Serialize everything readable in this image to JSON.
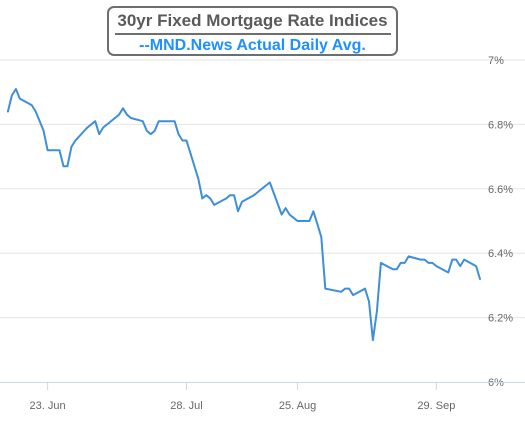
{
  "colors": {
    "line": "#3d8fd9",
    "grid": "#e6e6e6",
    "title_border": "#6e6e6e",
    "title_text": "#5a5a5a",
    "subtitle_text": "#1e90ff"
  },
  "chart_data": {
    "type": "line",
    "title": "30yr Fixed Mortgage Rate Indices",
    "subtitle": "--MND.News Actual Daily Avg.",
    "xlabel": "",
    "ylabel": "",
    "ylim": [
      6.0,
      7.0
    ],
    "y_tick_labels": [
      "7%",
      "6.8%",
      "6.6%",
      "6.4%",
      "6.2%",
      "6%"
    ],
    "y_tick_values": [
      7.0,
      6.8,
      6.6,
      6.4,
      6.2,
      6.0
    ],
    "x_tick_labels": [
      "23. Jun",
      "28. Jul",
      "25. Aug",
      "29. Sep"
    ],
    "x_tick_dates": [
      "2023-06-23",
      "2023-07-28",
      "2023-08-25",
      "2023-09-29"
    ],
    "grid": "horizontal",
    "legend": "none",
    "series": [
      {
        "x": [
          "2023-06-13",
          "2023-06-14",
          "2023-06-15",
          "2023-06-16",
          "2023-06-19",
          "2023-06-20",
          "2023-06-21",
          "2023-06-22",
          "2023-06-23",
          "2023-06-26",
          "2023-06-27",
          "2023-06-28",
          "2023-06-29",
          "2023-06-30",
          "2023-07-03",
          "2023-07-05",
          "2023-07-06",
          "2023-07-07",
          "2023-07-10",
          "2023-07-11",
          "2023-07-12",
          "2023-07-13",
          "2023-07-14",
          "2023-07-17",
          "2023-07-18",
          "2023-07-19",
          "2023-07-20",
          "2023-07-21",
          "2023-07-24",
          "2023-07-25",
          "2023-07-26",
          "2023-07-27",
          "2023-07-28",
          "2023-07-31",
          "2023-08-01",
          "2023-08-02",
          "2023-08-03",
          "2023-08-04",
          "2023-08-07",
          "2023-08-08",
          "2023-08-09",
          "2023-08-10",
          "2023-08-11",
          "2023-08-14",
          "2023-08-15",
          "2023-08-16",
          "2023-08-17",
          "2023-08-18",
          "2023-08-21",
          "2023-08-22",
          "2023-08-23",
          "2023-08-24",
          "2023-08-25",
          "2023-08-28",
          "2023-08-29",
          "2023-08-30",
          "2023-08-31",
          "2023-09-01",
          "2023-09-05",
          "2023-09-06",
          "2023-09-07",
          "2023-09-08",
          "2023-09-11",
          "2023-09-12",
          "2023-09-13",
          "2023-09-14",
          "2023-09-15",
          "2023-09-18",
          "2023-09-19",
          "2023-09-20",
          "2023-09-21",
          "2023-09-22",
          "2023-09-25",
          "2023-09-26",
          "2023-09-27",
          "2023-09-28",
          "2023-09-29",
          "2023-10-02",
          "2023-10-03",
          "2023-10-04",
          "2023-10-05",
          "2023-10-06",
          "2023-10-09",
          "2023-10-10"
        ],
        "y": [
          6.84,
          6.89,
          6.91,
          6.88,
          6.86,
          6.84,
          6.81,
          6.78,
          6.72,
          6.72,
          6.67,
          6.67,
          6.73,
          6.75,
          6.79,
          6.81,
          6.77,
          6.79,
          6.82,
          6.83,
          6.85,
          6.83,
          6.82,
          6.81,
          6.78,
          6.77,
          6.78,
          6.81,
          6.81,
          6.81,
          6.77,
          6.75,
          6.75,
          6.63,
          6.57,
          6.58,
          6.57,
          6.55,
          6.57,
          6.58,
          6.58,
          6.53,
          6.56,
          6.58,
          6.59,
          6.6,
          6.61,
          6.62,
          6.52,
          6.54,
          6.52,
          6.51,
          6.5,
          6.5,
          6.53,
          6.49,
          6.45,
          6.29,
          6.28,
          6.29,
          6.29,
          6.27,
          6.29,
          6.25,
          6.13,
          6.22,
          6.37,
          6.35,
          6.35,
          6.37,
          6.37,
          6.39,
          6.38,
          6.38,
          6.37,
          6.37,
          6.36,
          6.34,
          6.38,
          6.38,
          6.36,
          6.38,
          6.36,
          6.32
        ]
      }
    ]
  }
}
